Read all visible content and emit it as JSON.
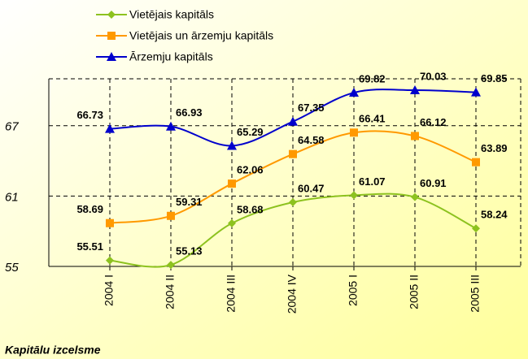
{
  "chart_data": {
    "type": "line",
    "caption": "Kapitālu izcelsme",
    "categories": [
      "2004 I",
      "2004 II",
      "2004 III",
      "2004 IV",
      "2005 I",
      "2005 II",
      "2005 III"
    ],
    "series": [
      {
        "name": "Vietējais kapitāls",
        "color": "#8dc21f",
        "marker": "diamond",
        "values": [
          55.51,
          55.13,
          58.68,
          60.47,
          61.07,
          60.91,
          58.24
        ]
      },
      {
        "name": "Vietējais un ārzemju kapitāls",
        "color": "#ff9900",
        "marker": "square",
        "values": [
          58.69,
          59.31,
          62.06,
          64.58,
          66.41,
          66.12,
          63.89
        ]
      },
      {
        "name": "Ārzemju kapitāls",
        "color": "#0000cc",
        "marker": "triangle",
        "values": [
          66.73,
          66.93,
          65.29,
          67.35,
          69.82,
          70.03,
          69.85
        ]
      }
    ],
    "ylim": [
      55,
      71
    ],
    "yticks": [
      55,
      61,
      67
    ],
    "grid": true,
    "smooth": true
  }
}
